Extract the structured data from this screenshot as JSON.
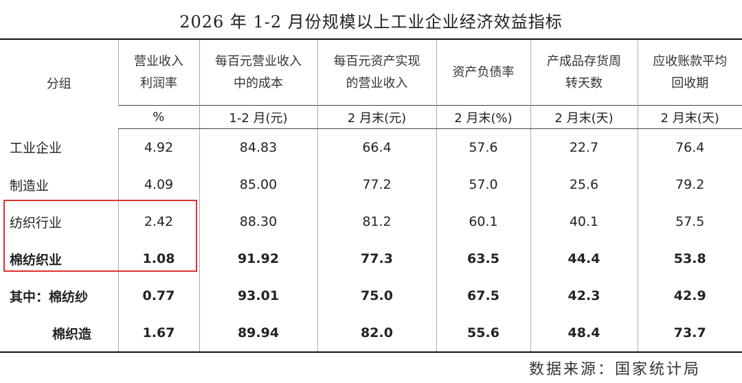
{
  "title": "2026 年 1-2 月份规模以上工业企业经济效益指标",
  "table": {
    "header": [
      [
        "分组"
      ],
      [
        "营业收入",
        "利润率"
      ],
      [
        "每百元营业收入",
        "中的成本"
      ],
      [
        "每百元资产实现",
        "的营业收入"
      ],
      [
        "资产负债率"
      ],
      [
        "产成品存货周",
        "转天数"
      ],
      [
        "应收账款平均",
        "回收期"
      ]
    ],
    "units": [
      "%",
      "1-2 月(元)",
      "2 月末(元)",
      "2 月末(%)",
      "2 月末(天)",
      "2 月末(天)"
    ],
    "rows": [
      [
        "工业企业",
        "4.92",
        "84.83",
        "66.4",
        "57.6",
        "22.7",
        "76.4"
      ],
      [
        "制造业",
        "4.09",
        "85.00",
        "77.2",
        "57.0",
        "25.6",
        "79.2"
      ],
      [
        "纺织行业",
        "2.42",
        "88.30",
        "81.2",
        "60.1",
        "40.1",
        "57.5"
      ],
      [
        "棉纺织业",
        "1.08",
        "91.92",
        "77.3",
        "63.5",
        "44.4",
        "53.8"
      ],
      [
        "其中：棉纺纱",
        "0.77",
        "93.01",
        "75.0",
        "67.5",
        "42.3",
        "42.9"
      ],
      [
        "棉织造",
        "1.67",
        "89.94",
        "82.0",
        "55.6",
        "48.4",
        "73.7"
      ]
    ]
  },
  "source": "数据来源：国家统计局"
}
